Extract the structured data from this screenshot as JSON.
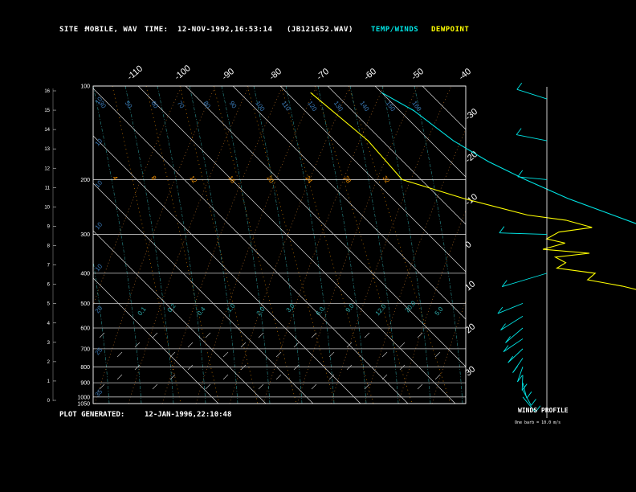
{
  "header": {
    "site_label": "SITE :",
    "site_value": "MOBILE, WAV",
    "time_label": "TIME:",
    "time_value": "12-NOV-1992,16:53:14",
    "file_value": "(JB121652.WAV)",
    "legend_temp": "TEMP/WINDS",
    "legend_dew": "DEWPOINT"
  },
  "footer": {
    "generated_label": "PLOT GENERATED:",
    "generated_value": "12-JAN-1996,22:10:48"
  },
  "wind_profile": {
    "title": "WINDS PROFILE",
    "scale_note": "One barb = 10.0 m/s"
  },
  "colors": {
    "temp": "#00e5e5",
    "dewpoint": "#ffff00",
    "isobar": "#c8c8c8",
    "isotherm": "#d8d8d8",
    "dry_adiabat": "#c87828",
    "moist_adiabat": "#2a8f8f",
    "mixing_ratio": "#ff9900"
  },
  "chart_data": {
    "type": "line",
    "title": "",
    "xlabel": "",
    "ylabel": "",
    "pressure_axis": {
      "ticks": [
        100,
        200,
        300,
        400,
        500,
        600,
        700,
        800,
        900,
        1000,
        1050
      ],
      "scale": "log",
      "range": [
        100,
        1050
      ]
    },
    "height_axis_km": [
      0,
      1,
      2,
      3,
      4,
      5,
      6,
      7,
      8,
      9,
      10,
      11,
      12,
      13,
      14,
      15,
      16
    ],
    "top_temperature_labels": [
      "-110",
      "-100",
      "-90",
      "-80",
      "-70",
      "-60",
      "-50",
      "-40"
    ],
    "right_temperature_labels": [
      "-30",
      "-20",
      "-10",
      "0",
      "10",
      "20",
      "30"
    ],
    "dry_adiabat_labels": [
      "30",
      "50",
      "60",
      "70",
      "80",
      "90",
      "100",
      "110",
      "120",
      "130",
      "140",
      "150",
      "160"
    ],
    "mixing_ratio_labels": [
      "4",
      "8",
      "12",
      "16",
      "20",
      "24",
      "28",
      "32"
    ],
    "moist_adiabat_labels": [
      "0.1",
      "0.2",
      "0.4",
      "1.0",
      "2.0",
      "3.0",
      "6.0",
      "9.0",
      "12.0",
      "20.0",
      "5.0"
    ],
    "left_moist_labels": [
      "10",
      "10",
      "10",
      "10",
      "10",
      "20",
      "25",
      "35"
    ],
    "series": [
      {
        "name": "TEMP/WINDS",
        "points": [
          [
            105,
            -60
          ],
          [
            120,
            -57
          ],
          [
            150,
            -55
          ],
          [
            175,
            -52
          ],
          [
            200,
            -48
          ],
          [
            230,
            -43
          ],
          [
            260,
            -37
          ],
          [
            300,
            -30
          ],
          [
            340,
            -26
          ],
          [
            380,
            -21
          ],
          [
            420,
            -17
          ],
          [
            460,
            -14
          ],
          [
            500,
            -11
          ],
          [
            550,
            -8
          ],
          [
            600,
            -5
          ],
          [
            650,
            -1
          ],
          [
            700,
            2
          ],
          [
            750,
            5
          ],
          [
            800,
            8
          ],
          [
            850,
            11
          ],
          [
            900,
            13
          ],
          [
            950,
            15
          ],
          [
            1000,
            17
          ],
          [
            1012,
            18
          ]
        ]
      },
      {
        "name": "DEWPOINT",
        "points": [
          [
            105,
            -75
          ],
          [
            150,
            -73
          ],
          [
            200,
            -74
          ],
          [
            230,
            -65
          ],
          [
            260,
            -55
          ],
          [
            270,
            -48
          ],
          [
            285,
            -44
          ],
          [
            295,
            -52
          ],
          [
            310,
            -56
          ],
          [
            320,
            -53
          ],
          [
            335,
            -59
          ],
          [
            345,
            -50
          ],
          [
            355,
            -58
          ],
          [
            370,
            -57
          ],
          [
            385,
            -60
          ],
          [
            400,
            -53
          ],
          [
            420,
            -56
          ],
          [
            440,
            -50
          ],
          [
            460,
            -46
          ],
          [
            480,
            -45
          ],
          [
            500,
            -38
          ],
          [
            505,
            -30
          ],
          [
            520,
            -25
          ],
          [
            550,
            -18
          ],
          [
            600,
            -10
          ],
          [
            650,
            -7
          ],
          [
            700,
            -8
          ],
          [
            705,
            -20
          ],
          [
            760,
            -22
          ],
          [
            800,
            -38
          ],
          [
            815,
            -32
          ],
          [
            830,
            -28
          ],
          [
            850,
            -38
          ],
          [
            870,
            -20
          ],
          [
            890,
            -25
          ],
          [
            900,
            -12
          ],
          [
            940,
            -6
          ],
          [
            970,
            -4
          ],
          [
            985,
            1
          ],
          [
            1000,
            5
          ],
          [
            1012,
            7
          ]
        ]
      }
    ],
    "winds": [
      {
        "p": 110,
        "speed": 12,
        "dir": 300
      },
      {
        "p": 150,
        "speed": 10,
        "dir": 290
      },
      {
        "p": 200,
        "speed": 8,
        "dir": 280
      },
      {
        "p": 300,
        "speed": 9,
        "dir": 275
      },
      {
        "p": 400,
        "speed": 15,
        "dir": 230
      },
      {
        "p": 500,
        "speed": 14,
        "dir": 240
      },
      {
        "p": 550,
        "speed": 16,
        "dir": 230
      },
      {
        "p": 600,
        "speed": 15,
        "dir": 225
      },
      {
        "p": 650,
        "speed": 14,
        "dir": 230
      },
      {
        "p": 700,
        "speed": 13,
        "dir": 225
      },
      {
        "p": 750,
        "speed": 12,
        "dir": 220
      },
      {
        "p": 800,
        "speed": 11,
        "dir": 215
      },
      {
        "p": 850,
        "speed": 10,
        "dir": 210
      },
      {
        "p": 900,
        "speed": 9,
        "dir": 205
      },
      {
        "p": 950,
        "speed": 8,
        "dir": 200
      },
      {
        "p": 1000,
        "speed": 7,
        "dir": 195
      }
    ]
  }
}
